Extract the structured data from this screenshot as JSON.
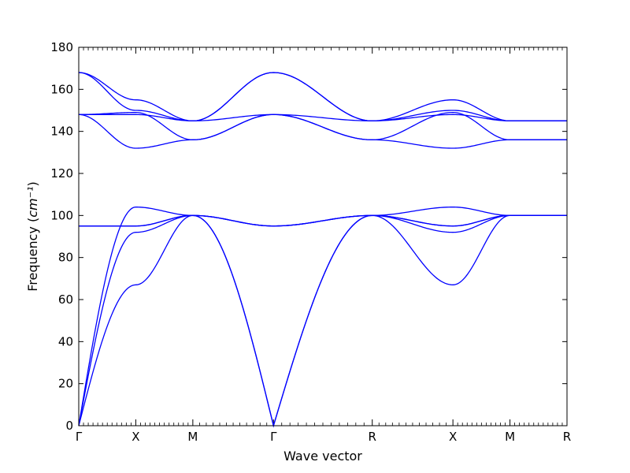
{
  "chart_data": {
    "type": "line",
    "title": "",
    "xlabel": "Wave vector",
    "ylabel": "Frequency",
    "ylabel_unit": "cm⁻¹",
    "ylim": [
      0,
      180
    ],
    "yticks": [
      0,
      20,
      40,
      60,
      80,
      100,
      120,
      140,
      160,
      180
    ],
    "grid": false,
    "legend": "none",
    "line_color": "#0000ff",
    "kpath": [
      {
        "label": "Γ",
        "x": 0
      },
      {
        "label": "X",
        "x": 0.5
      },
      {
        "label": "M",
        "x": 1.0
      },
      {
        "label": "Γ",
        "x": 1.707
      },
      {
        "label": "R",
        "x": 2.573
      },
      {
        "label": "X",
        "x": 3.28
      },
      {
        "label": "M",
        "x": 3.78
      },
      {
        "label": "R",
        "x": 4.28
      }
    ],
    "x": [
      0,
      0.5,
      1.0,
      1.707,
      2.573,
      3.28,
      3.78,
      4.28
    ],
    "series": [
      {
        "values": [
          0,
          67,
          100,
          0,
          100,
          67,
          100,
          100
        ]
      },
      {
        "values": [
          0,
          92,
          100,
          0,
          100,
          92,
          100,
          100
        ]
      },
      {
        "values": [
          0,
          104,
          100,
          95,
          100,
          104,
          100,
          100
        ]
      },
      {
        "values": [
          95,
          95,
          100,
          95,
          100,
          95,
          100,
          100
        ]
      },
      {
        "values": [
          95,
          95,
          100,
          95,
          100,
          95,
          100,
          100
        ]
      },
      {
        "values": [
          148,
          132,
          136,
          148,
          136,
          132,
          136,
          136
        ]
      },
      {
        "values": [
          148,
          149,
          136,
          148,
          136,
          149,
          136,
          136
        ]
      },
      {
        "values": [
          148,
          148,
          145,
          148,
          145,
          148,
          145,
          145
        ]
      },
      {
        "values": [
          168,
          155,
          145,
          168,
          145,
          155,
          145,
          145
        ]
      },
      {
        "values": [
          168,
          150,
          145,
          168,
          145,
          150,
          145,
          145
        ]
      }
    ]
  }
}
